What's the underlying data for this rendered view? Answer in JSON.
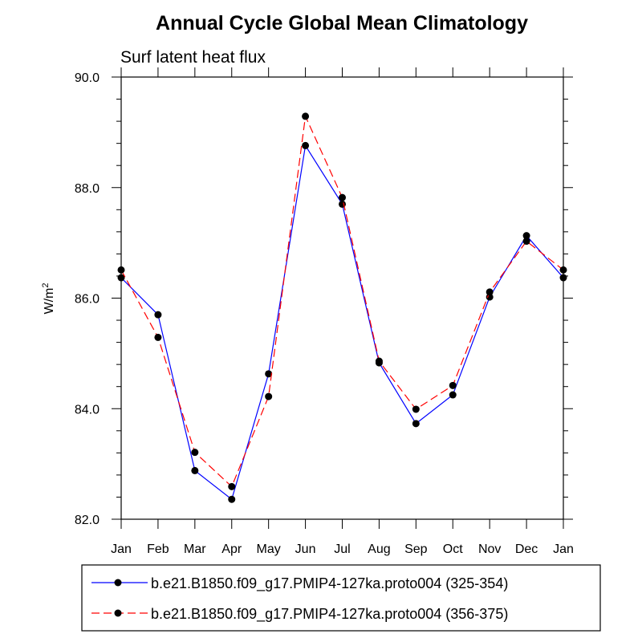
{
  "chart_data": {
    "type": "line",
    "title": "Annual Cycle Global Mean Climatology",
    "subtitle": "Surf latent heat flux",
    "ylabel": "W/m",
    "ylabel_superscript": "2",
    "xlabel": "",
    "categories": [
      "Jan",
      "Feb",
      "Mar",
      "Apr",
      "May",
      "Jun",
      "Jul",
      "Aug",
      "Sep",
      "Oct",
      "Nov",
      "Dec",
      "Jan"
    ],
    "ylim": [
      82.0,
      90.0
    ],
    "yticks_major": [
      82.0,
      84.0,
      86.0,
      88.0,
      90.0
    ],
    "ytick_labels": [
      "82.0",
      "84.0",
      "86.0",
      "88.0",
      "90.0"
    ],
    "series": [
      {
        "name": "b.e21.B1850.f09_g17.PMIP4-127ka.proto004 (325-354)",
        "color": "#0000ff",
        "dash": "solid",
        "values": [
          86.37,
          85.7,
          82.88,
          82.36,
          84.63,
          88.76,
          87.7,
          84.83,
          83.73,
          84.25,
          86.02,
          87.13,
          86.37
        ]
      },
      {
        "name": "b.e21.B1850.f09_g17.PMIP4-127ka.proto004 (356-375)",
        "color": "#ff0000",
        "dash": "dashed",
        "values": [
          86.51,
          85.29,
          83.21,
          82.59,
          84.22,
          89.29,
          87.82,
          84.86,
          83.99,
          84.42,
          86.11,
          87.03,
          86.51
        ]
      }
    ],
    "legend_position": "bottom"
  }
}
